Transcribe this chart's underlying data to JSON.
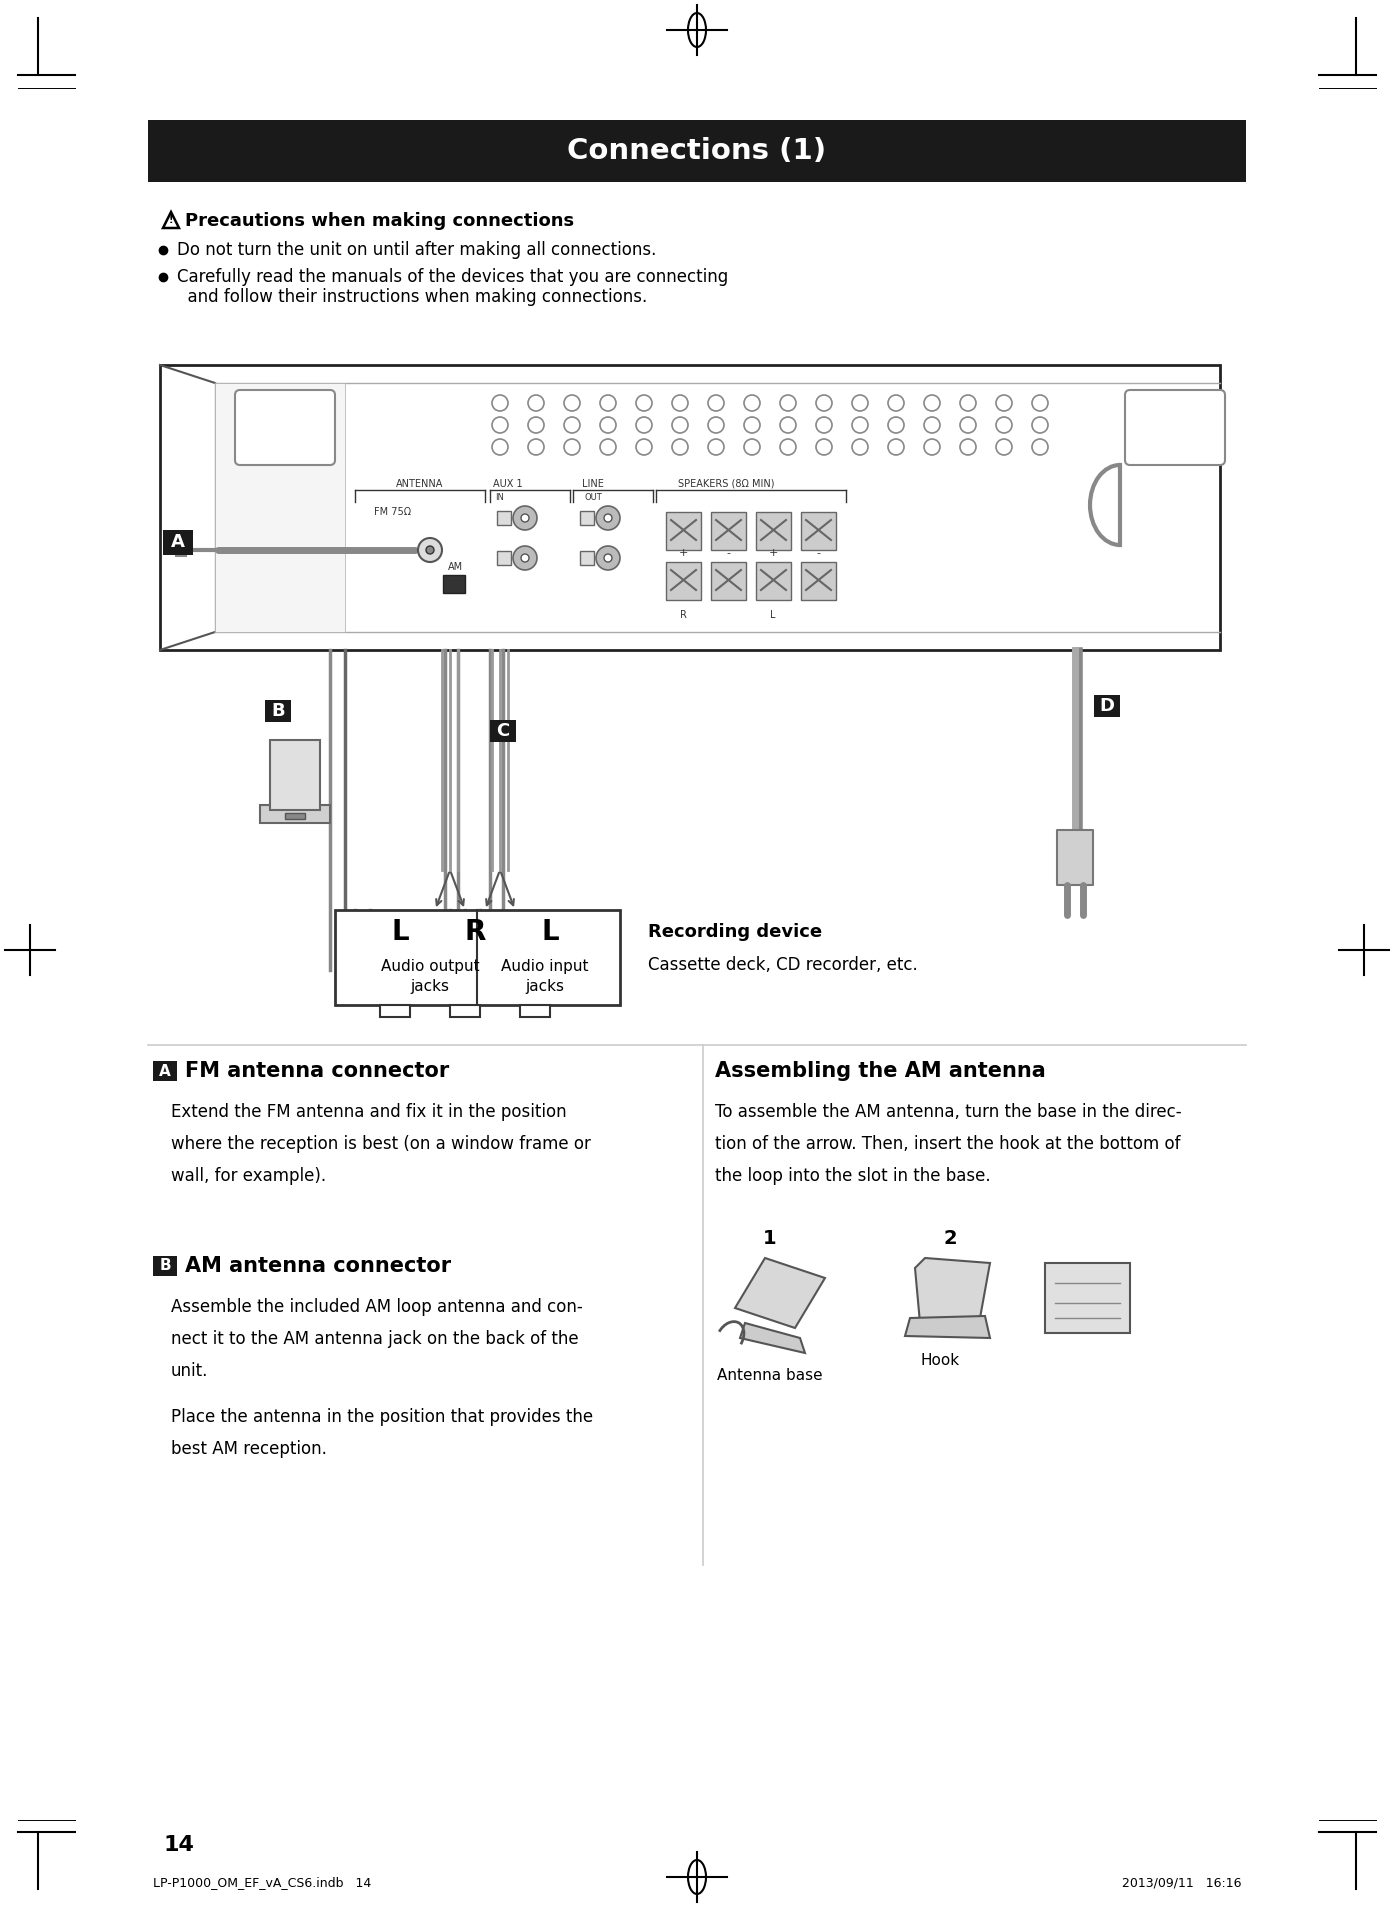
{
  "title": "Connections (1)",
  "title_bg": "#1a1a1a",
  "title_fg": "#ffffff",
  "page_bg": "#ffffff",
  "page_number": "14",
  "footer_left": "LP-P1000_OM_EF_vA_CS6.indb   14",
  "footer_right": "2013/09/11   16:16",
  "precaution_title": "Precautions when making connections",
  "bullet1": "Do not turn the unit on until after making all connections.",
  "bullet2_line1": "Carefully read the manuals of the devices that you are connecting",
  "bullet2_line2": "  and follow their instructions when making connections.",
  "label_A": "A",
  "label_B": "B",
  "label_C": "C",
  "label_D": "D",
  "section_A_title": "FM antenna connector",
  "section_A_text": "Extend the FM antenna and fix it in the position\nwhere the reception is best (on a window frame or\nwall, for example).",
  "section_B_title": "AM antenna connector",
  "section_B_text1": "Assemble the included AM loop antenna and con-\nnect it to the AM antenna jack on the back of the\nunit.",
  "section_B_text2": "Place the antenna in the position that provides the\nbest AM reception.",
  "section_C_title": "Assembling the AM antenna",
  "section_C_text": "To assemble the AM antenna, turn the base in the direc-\ntion of the arrow. Then, insert the hook at the bottom of\nthe loop into the slot in the base.",
  "antenna_base_label": "Antenna base",
  "hook_label": "Hook",
  "num1": "1",
  "num2": "2",
  "recording_device_title": "Recording device",
  "recording_device_text": "Cassette deck, CD recorder, etc.",
  "jack_L_label": "L",
  "jack_R_label": "R",
  "jack_L2_label": "L",
  "audio_output_label": "Audio output",
  "audio_input_label": "Audio input",
  "jacks": "jacks"
}
